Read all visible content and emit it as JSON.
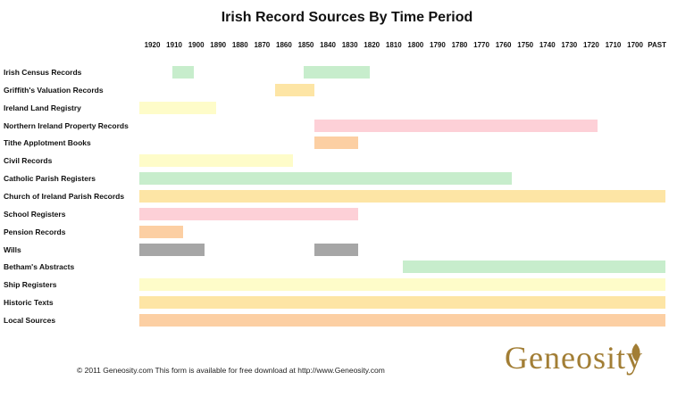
{
  "chart_data": {
    "type": "bar",
    "title": "Irish Record Sources By Time Period",
    "periods": [
      "1920",
      "1910",
      "1900",
      "1890",
      "1880",
      "1870",
      "1860",
      "1850",
      "1840",
      "1830",
      "1820",
      "1810",
      "1800",
      "1790",
      "1780",
      "1770",
      "1760",
      "1750",
      "1740",
      "1730",
      "1720",
      "1710",
      "1700",
      "PAST"
    ],
    "records": [
      {
        "name": "Irish Census Records",
        "color": "#c7edcc",
        "ranges": [
          [
            1911,
            1901
          ],
          [
            1851,
            1821
          ]
        ]
      },
      {
        "name": "Griffith's Valuation Records",
        "color": "#fde5a5",
        "ranges": [
          [
            1864,
            1846
          ]
        ]
      },
      {
        "name": "Ireland Land Registry",
        "color": "#fefcc9",
        "ranges": [
          [
            1926,
            1891
          ]
        ]
      },
      {
        "name": "Northern Ireland Property Records",
        "color": "#fdd0d7",
        "ranges": [
          [
            1846,
            1717
          ]
        ]
      },
      {
        "name": "Tithe Applotment Books",
        "color": "#fccfa3",
        "ranges": [
          [
            1846,
            1826
          ]
        ]
      },
      {
        "name": "Civil Records",
        "color": "#fefcc9",
        "ranges": [
          [
            1926,
            1856
          ]
        ]
      },
      {
        "name": "Catholic Parish Registers",
        "color": "#c7edcc",
        "ranges": [
          [
            1926,
            1756
          ]
        ]
      },
      {
        "name": "Church of Ireland Parish Records",
        "color": "#fde5a5",
        "ranges": [
          [
            1926,
            1686
          ]
        ]
      },
      {
        "name": "School Registers",
        "color": "#fdd0d7",
        "ranges": [
          [
            1926,
            1826
          ]
        ]
      },
      {
        "name": "Pension Records",
        "color": "#fccfa3",
        "ranges": [
          [
            1926,
            1906
          ]
        ]
      },
      {
        "name": "Wills",
        "color": "#a6a6a6",
        "ranges": [
          [
            1926,
            1896
          ],
          [
            1846,
            1826
          ]
        ]
      },
      {
        "name": "Betham's Abstracts",
        "color": "#c7edcc",
        "ranges": [
          [
            1806,
            1686
          ]
        ]
      },
      {
        "name": "Ship Registers",
        "color": "#fefcc9",
        "ranges": [
          [
            1926,
            1686
          ]
        ]
      },
      {
        "name": "Historic Texts",
        "color": "#fde5a5",
        "ranges": [
          [
            1926,
            1686
          ]
        ]
      },
      {
        "name": "Local Sources",
        "color": "#fccfa3",
        "ranges": [
          [
            1926,
            1686
          ]
        ]
      }
    ]
  },
  "footer": "© 2011 Geneosity.com    This form is available for free download at http://www.Geneosity.com",
  "brand": "Geneosity"
}
